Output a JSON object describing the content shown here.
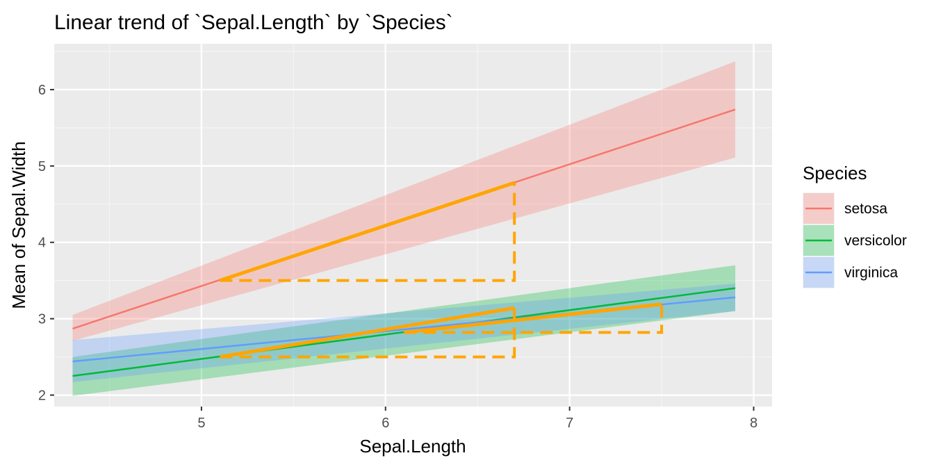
{
  "chart_data": {
    "type": "line",
    "title": "Linear trend of `Sepal.Length` by `Species`",
    "xlabel": "Sepal.Length",
    "ylabel": "Mean of Sepal.Width",
    "xlim": [
      4.2,
      8.1
    ],
    "ylim": [
      1.85,
      6.6
    ],
    "x_ticks": [
      5,
      6,
      7,
      8
    ],
    "y_ticks": [
      2,
      3,
      4,
      5,
      6
    ],
    "grid": true,
    "legend": {
      "title": "Species",
      "position": "right",
      "entries": [
        "setosa",
        "versicolor",
        "virginica"
      ]
    },
    "series": [
      {
        "name": "setosa",
        "color": "#F8766D",
        "x": [
          4.3,
          7.9
        ],
        "y": [
          2.87,
          5.74
        ],
        "ci_lower": [
          2.71,
          5.11
        ],
        "ci_upper": [
          3.05,
          6.37
        ]
      },
      {
        "name": "versicolor",
        "color": "#00BA38",
        "x": [
          4.3,
          7.9
        ],
        "y": [
          2.25,
          3.4
        ],
        "ci_lower": [
          1.99,
          3.1
        ],
        "ci_upper": [
          2.5,
          3.7
        ]
      },
      {
        "name": "virginica",
        "color": "#619CFF",
        "x": [
          4.3,
          7.9
        ],
        "y": [
          2.44,
          3.28
        ],
        "ci_lower": [
          2.17,
          3.1
        ],
        "ci_upper": [
          2.72,
          3.46
        ]
      }
    ],
    "annotations": {
      "color": "#FFA500",
      "highlight_segments": [
        {
          "x": [
            5.1,
            6.7
          ],
          "y": [
            3.5,
            4.78
          ]
        },
        {
          "x": [
            5.1,
            6.7
          ],
          "y": [
            2.5,
            3.14
          ]
        },
        {
          "x": [
            6.1,
            7.5
          ],
          "y": [
            2.82,
            3.19
          ]
        }
      ],
      "dashed_paths": [
        {
          "x": [
            5.1,
            6.7,
            6.7
          ],
          "y": [
            3.5,
            3.5,
            4.78
          ]
        },
        {
          "x": [
            5.1,
            6.7,
            6.7
          ],
          "y": [
            2.5,
            2.5,
            3.14
          ]
        },
        {
          "x": [
            6.1,
            7.5,
            7.5
          ],
          "y": [
            2.82,
            2.82,
            3.19
          ]
        }
      ]
    }
  }
}
